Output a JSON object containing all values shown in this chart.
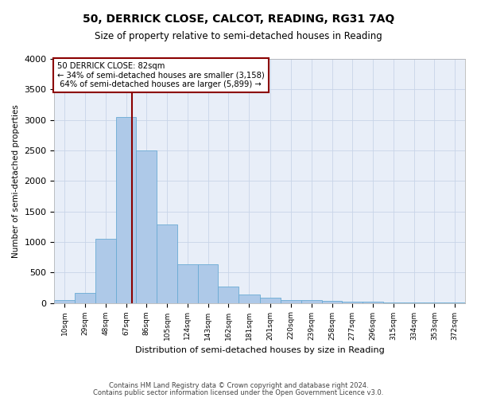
{
  "title": "50, DERRICK CLOSE, CALCOT, READING, RG31 7AQ",
  "subtitle": "Size of property relative to semi-detached houses in Reading",
  "xlabel": "Distribution of semi-detached houses by size in Reading",
  "ylabel": "Number of semi-detached properties",
  "property_label": "50 DERRICK CLOSE: 82sqm",
  "pct_smaller": 34,
  "pct_larger": 64,
  "n_smaller": 3158,
  "n_larger": 5899,
  "bin_edges": [
    10,
    29,
    48,
    67,
    86,
    105,
    124,
    143,
    162,
    181,
    201,
    220,
    239,
    258,
    277,
    296,
    315,
    334,
    353,
    372,
    391
  ],
  "bin_counts": [
    50,
    160,
    1050,
    3050,
    2500,
    1280,
    640,
    640,
    270,
    140,
    90,
    50,
    50,
    40,
    25,
    15,
    10,
    5,
    5,
    5
  ],
  "bar_color": "#aec9e8",
  "bar_edge_color": "#6aaad4",
  "vline_color": "#8b0000",
  "vline_x": 82,
  "annotation_box_facecolor": "#ffffff",
  "annotation_box_edgecolor": "#8b0000",
  "grid_color": "#c8d4e8",
  "background_color": "#e8eef8",
  "ylim": [
    0,
    4000
  ],
  "yticks": [
    0,
    500,
    1000,
    1500,
    2000,
    2500,
    3000,
    3500,
    4000
  ],
  "footer1": "Contains HM Land Registry data © Crown copyright and database right 2024.",
  "footer2": "Contains public sector information licensed under the Open Government Licence v3.0.",
  "fig_width": 6.0,
  "fig_height": 5.0,
  "fig_dpi": 100
}
